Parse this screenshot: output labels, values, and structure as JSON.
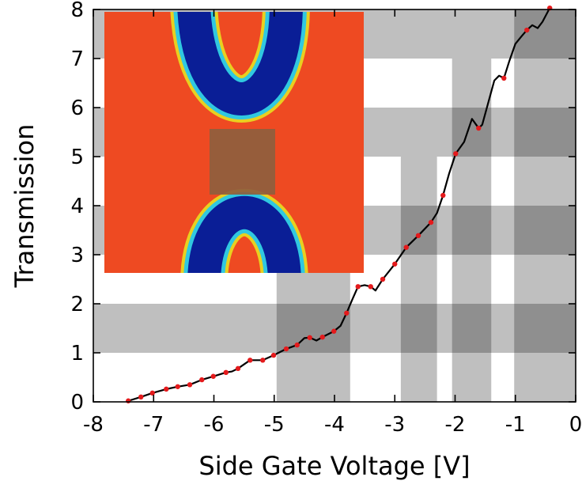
{
  "chart_data": {
    "type": "line",
    "xlabel": "Side Gate Voltage [V]",
    "ylabel": "Transmission",
    "xlim": [
      -8,
      0
    ],
    "ylim": [
      0,
      8
    ],
    "xticks": [
      -8,
      -7,
      -6,
      -5,
      -4,
      -3,
      -2,
      -1,
      0
    ],
    "yticks": [
      0,
      1,
      2,
      3,
      4,
      5,
      6,
      7,
      8
    ],
    "band_color": "#000000",
    "band_opacity": 0.25,
    "h_bands": [
      [
        1,
        2
      ],
      [
        3,
        4
      ],
      [
        5,
        6
      ],
      [
        7,
        8
      ]
    ],
    "v_bands": [
      {
        "x": [
          -4.96,
          -3.74
        ],
        "y": [
          0,
          3
        ]
      },
      {
        "x": [
          -2.9,
          -2.3
        ],
        "y": [
          0,
          5
        ]
      },
      {
        "x": [
          -2.05,
          -1.4
        ],
        "y": [
          0,
          7
        ]
      },
      {
        "x": [
          -1.02,
          0
        ],
        "y": [
          0,
          8
        ]
      }
    ],
    "series": [
      {
        "type": "line",
        "color": "#000000",
        "x": [
          -7.45,
          -7.42,
          -7.21,
          -7.02,
          -6.79,
          -6.6,
          -6.4,
          -6.2,
          -6.01,
          -5.8,
          -5.7,
          -5.6,
          -5.4,
          -5.19,
          -5.01,
          -4.8,
          -4.62,
          -4.5,
          -4.41,
          -4.3,
          -4.2,
          -4.01,
          -3.9,
          -3.8,
          -3.7,
          -3.61,
          -3.5,
          -3.4,
          -3.32,
          -3.2,
          -3.0,
          -2.81,
          -2.61,
          -2.4,
          -2.3,
          -2.2,
          -2.1,
          -1.99,
          -1.85,
          -1.72,
          -1.65,
          -1.61,
          -1.55,
          -1.45,
          -1.35,
          -1.27,
          -1.19,
          -1.1,
          -1.0,
          -0.9,
          -0.81,
          -0.72,
          -0.63,
          -0.55,
          -0.43
        ],
        "y": [
          0.0,
          0.02,
          0.1,
          0.18,
          0.26,
          0.31,
          0.35,
          0.45,
          0.52,
          0.6,
          0.62,
          0.68,
          0.85,
          0.85,
          0.95,
          1.08,
          1.16,
          1.3,
          1.31,
          1.25,
          1.32,
          1.44,
          1.55,
          1.81,
          2.1,
          2.35,
          2.38,
          2.35,
          2.27,
          2.5,
          2.81,
          3.15,
          3.39,
          3.66,
          3.85,
          4.21,
          4.65,
          5.06,
          5.3,
          5.77,
          5.65,
          5.58,
          5.65,
          6.1,
          6.55,
          6.65,
          6.6,
          6.95,
          7.3,
          7.45,
          7.58,
          7.68,
          7.62,
          7.75,
          8.03
        ]
      },
      {
        "type": "scatter",
        "color": "#e41a1c",
        "x": [
          -7.42,
          -7.21,
          -7.02,
          -6.79,
          -6.6,
          -6.4,
          -6.2,
          -6.01,
          -5.8,
          -5.6,
          -5.4,
          -5.19,
          -5.01,
          -4.8,
          -4.62,
          -4.41,
          -4.2,
          -4.01,
          -3.8,
          -3.61,
          -3.4,
          -3.2,
          -3.0,
          -2.81,
          -2.61,
          -2.4,
          -2.2,
          -1.99,
          -1.61,
          -1.19,
          -0.81,
          -0.43
        ],
        "y": [
          0.02,
          0.1,
          0.18,
          0.26,
          0.31,
          0.35,
          0.45,
          0.52,
          0.6,
          0.68,
          0.85,
          0.85,
          0.95,
          1.08,
          1.16,
          1.31,
          1.32,
          1.44,
          1.81,
          2.35,
          2.35,
          2.5,
          2.81,
          3.15,
          3.39,
          3.66,
          4.21,
          5.06,
          5.58,
          6.6,
          7.58,
          8.03
        ]
      }
    ]
  }
}
